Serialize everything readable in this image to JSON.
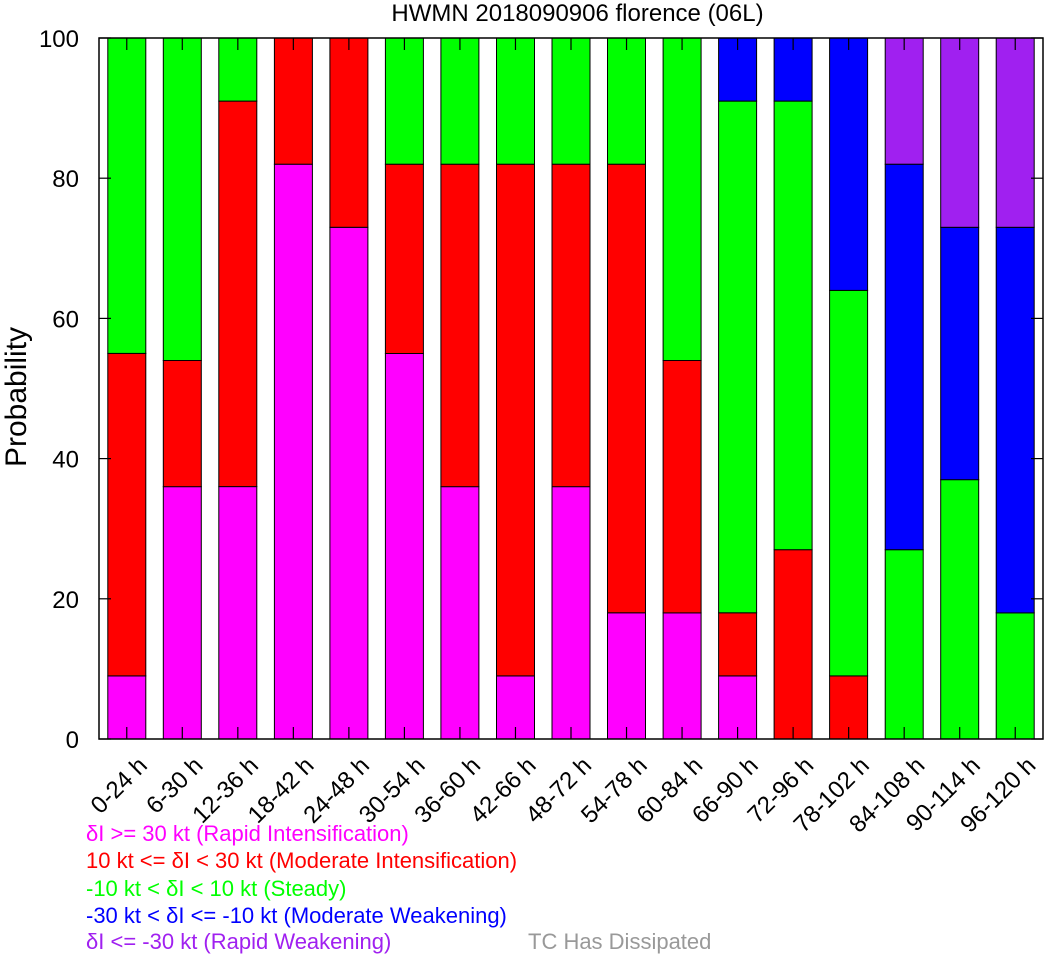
{
  "chart_data": {
    "type": "bar",
    "stacked": true,
    "title": "HWMN 2018090906 florence (06L)",
    "ylabel": "Probability",
    "xlabel": "",
    "ylim": [
      0,
      100
    ],
    "yticks": [
      "0",
      "20",
      "40",
      "60",
      "80",
      "100"
    ],
    "categories": [
      "0-24 h",
      "6-30 h",
      "12-36 h",
      "18-42 h",
      "24-48 h",
      "30-54 h",
      "36-60 h",
      "42-66 h",
      "48-72 h",
      "54-78 h",
      "60-84 h",
      "66-90 h",
      "72-96 h",
      "78-102 h",
      "84-108 h",
      "90-114 h",
      "96-120 h"
    ],
    "series": [
      {
        "name": "δI >= 30 kt (Rapid Intensification)",
        "color": "#ff00ff",
        "values": [
          9,
          36,
          36,
          82,
          73,
          55,
          36,
          9,
          36,
          18,
          18,
          9,
          0,
          0,
          0,
          0,
          0
        ]
      },
      {
        "name": "10 kt <= δI < 30 kt (Moderate Intensification)",
        "color": "#ff0000",
        "values": [
          46,
          18,
          55,
          18,
          27,
          27,
          46,
          73,
          46,
          64,
          36,
          9,
          27,
          9,
          0,
          0,
          0
        ]
      },
      {
        "name": "-10 kt < δI < 10 kt (Steady)",
        "color": "#00ff00",
        "values": [
          45,
          46,
          9,
          0,
          0,
          18,
          18,
          18,
          18,
          18,
          46,
          73,
          64,
          55,
          27,
          37,
          18
        ]
      },
      {
        "name": "-30 kt < δI <= -10 kt (Moderate Weakening)",
        "color": "#0000ff",
        "values": [
          0,
          0,
          0,
          0,
          0,
          0,
          0,
          0,
          0,
          0,
          0,
          9,
          9,
          36,
          55,
          36,
          55
        ]
      },
      {
        "name": "δI <= -30 kt (Rapid Weakening)",
        "color": "#a020f0",
        "values": [
          0,
          0,
          0,
          0,
          0,
          0,
          0,
          0,
          0,
          0,
          0,
          0,
          0,
          0,
          18,
          27,
          27
        ]
      }
    ],
    "extra_legend": {
      "label": "TC Has Dissipated",
      "color": "#999999"
    }
  }
}
